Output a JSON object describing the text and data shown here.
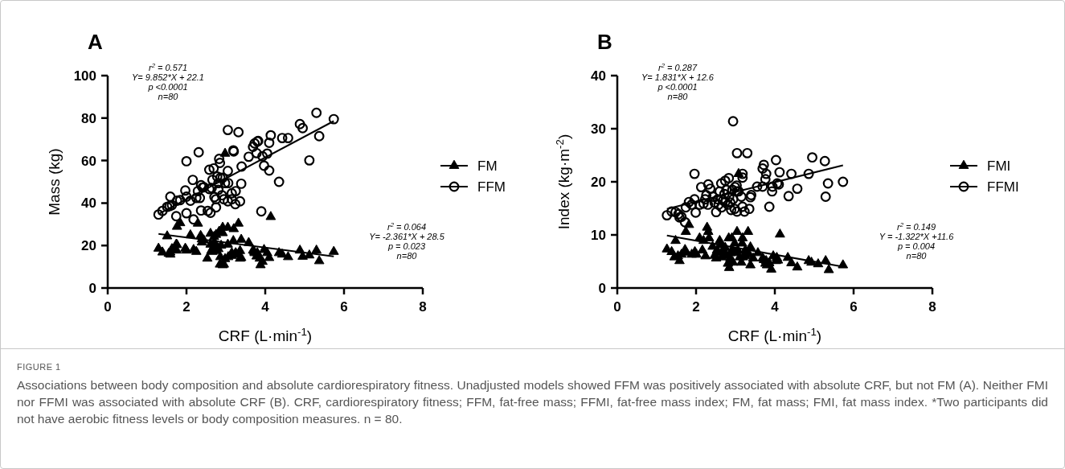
{
  "chart_data": [
    {
      "type": "scatter",
      "title": "A",
      "xlabel": "CRF (L·min$^{-1}$)",
      "ylabel": "Mass (kg)",
      "xlim": [
        0,
        8
      ],
      "xticks": [
        0,
        2,
        4,
        6,
        8
      ],
      "ylim": [
        0,
        100
      ],
      "yticks": [
        0,
        20,
        40,
        60,
        80,
        100
      ],
      "legend": "right",
      "annotations": [
        "r$^{2}$ = 0.571\nY= 9.852*X + 22.1\np <0.0001\nn=80",
        "r$^{2}$ = 0.064\nY= -2.361*X + 28.5\np = 0.023\nn=80"
      ],
      "series": [
        {
          "name": "FM",
          "color": "#000000",
          "marker": "triangle",
          "x": [
            1.29,
            1.39,
            1.51,
            1.55,
            1.59,
            1.63,
            1.74,
            1.75,
            1.76,
            1.84,
            1.97,
            2.0,
            2.1,
            2.18,
            2.25,
            2.29,
            2.36,
            2.39,
            2.44,
            2.53,
            2.61,
            2.63,
            2.66,
            2.68,
            2.7,
            2.71,
            2.75,
            2.81,
            2.83,
            2.85,
            2.86,
            2.88,
            2.92,
            2.92,
            2.95,
            2.98,
            3.05,
            3.05,
            3.06,
            3.15,
            3.19,
            3.2,
            3.22,
            3.25,
            3.32,
            3.36,
            3.39,
            3.39,
            3.58,
            3.69,
            3.73,
            3.78,
            3.8,
            3.88,
            3.93,
            3.97,
            4.05,
            4.1,
            4.14,
            4.35,
            4.43,
            4.58,
            4.88,
            4.95,
            5.12,
            5.3,
            5.37,
            5.74,
            2.98,
            2.75,
            3.72,
            2.75,
            2.61,
            2.39,
            1.76,
            1.59,
            3.36,
            3.86,
            2.92,
            3.15
          ],
          "values": [
            18.6,
            16.8,
            24.4,
            16.2,
            16.8,
            18.4,
            20.5,
            17.7,
            28.9,
            30.6,
            18.6,
            17.7,
            24.9,
            18.0,
            17.1,
            30.4,
            24.6,
            23.0,
            22.5,
            13.9,
            25.6,
            17.5,
            17.1,
            19.0,
            24.1,
            21.5,
            17.5,
            18.4,
            26.6,
            11.1,
            14.6,
            20.0,
            28.5,
            25.9,
            11.1,
            13.7,
            28.5,
            20.5,
            14.6,
            16.5,
            22.2,
            27.8,
            15.7,
            16.5,
            30.4,
            17.5,
            22.8,
            14.2,
            21.3,
            17.7,
            16.5,
            14.9,
            16.5,
            10.8,
            12.4,
            18.0,
            16.5,
            14.2,
            33.5,
            16.5,
            15.8,
            14.6,
            17.7,
            14.8,
            15.4,
            17.7,
            12.7,
            17.1,
            63.3,
            25.1,
            17.1,
            19.6,
            20.5,
            21.5,
            20.3,
            15.8,
            13.9,
            13.9,
            10.8,
            15.2
          ]
        },
        {
          "name": "FFM",
          "color": "#000000",
          "marker": "circle",
          "x": [
            1.29,
            1.39,
            1.51,
            1.57,
            1.63,
            1.74,
            1.59,
            1.76,
            1.84,
            1.97,
            2.0,
            2.0,
            2.1,
            2.16,
            2.18,
            2.25,
            2.29,
            2.31,
            2.34,
            2.37,
            2.37,
            2.44,
            2.54,
            2.58,
            2.64,
            2.66,
            2.69,
            2.71,
            2.75,
            2.75,
            2.81,
            2.81,
            2.83,
            2.85,
            2.86,
            2.9,
            2.92,
            2.95,
            2.98,
            3.05,
            3.05,
            3.06,
            3.05,
            3.15,
            3.15,
            3.19,
            3.2,
            3.24,
            3.32,
            3.36,
            3.39,
            3.4,
            3.58,
            3.69,
            3.73,
            3.78,
            3.8,
            3.82,
            3.93,
            3.97,
            4.05,
            4.1,
            4.1,
            4.14,
            4.35,
            4.43,
            4.58,
            4.88,
            4.95,
            5.12,
            5.3,
            5.37,
            5.74,
            3.9,
            2.41,
            2.58,
            2.78,
            2.0,
            3.25,
            2.61
          ],
          "values": [
            34.6,
            36.3,
            38.2,
            38.6,
            39.0,
            33.8,
            43.0,
            41.1,
            41.4,
            45.9,
            35.2,
            43.0,
            41.1,
            50.9,
            32.3,
            42.4,
            45.6,
            63.9,
            42.4,
            48.4,
            36.5,
            47.5,
            36.3,
            46.6,
            47.1,
            50.9,
            56.3,
            42.8,
            38.0,
            41.8,
            46.2,
            49.4,
            60.8,
            58.9,
            51.9,
            43.7,
            51.9,
            41.8,
            49.4,
            55.1,
            74.4,
            49.4,
            40.8,
            44.6,
            41.8,
            64.8,
            64.3,
            39.5,
            73.4,
            40.8,
            49.1,
            57.2,
            61.8,
            66.5,
            68.1,
            63.5,
            69.0,
            69.2,
            62.0,
            57.6,
            63.3,
            55.3,
            68.4,
            71.9,
            50.0,
            70.6,
            70.6,
            77.2,
            75.3,
            60.1,
            82.5,
            71.5,
            79.5,
            36.1,
            47.3,
            55.7,
            52.5,
            59.7,
            45.6,
            35.4
          ]
        },
        {
          "type": "line",
          "color": "#000000",
          "x": [
            1.29,
            5.74
          ],
          "values": [
            34.8,
            78.6
          ]
        },
        {
          "type": "line",
          "color": "#000000",
          "x": [
            1.29,
            5.74
          ],
          "values": [
            25.5,
            14.9
          ]
        }
      ]
    },
    {
      "type": "scatter",
      "title": "B",
      "xlabel": "CRF (L·min$^{-1}$)",
      "ylabel": "Index (kg·m$^{-2}$)",
      "xlim": [
        0,
        8
      ],
      "xticks": [
        0,
        2,
        4,
        6,
        8
      ],
      "ylim": [
        0,
        40
      ],
      "yticks": [
        0,
        10,
        20,
        30,
        40
      ],
      "legend": "right",
      "annotations": [
        "r$^{2}$ = 0.287\nY= 1.831*X + 12.6\np <0.0001\nn=80",
        "r$^{2}$ = 0.149\nY = -1.322*X +11.6\np = 0.004\nn=80"
      ],
      "series": [
        {
          "name": "FMI",
          "color": "#000000",
          "marker": "triangle",
          "x": [
            1.26,
            1.38,
            1.48,
            1.54,
            1.58,
            1.63,
            1.72,
            1.74,
            1.74,
            1.82,
            1.97,
            2.01,
            2.09,
            2.19,
            2.24,
            2.28,
            2.31,
            2.33,
            2.42,
            2.51,
            2.57,
            2.6,
            2.64,
            2.65,
            2.69,
            2.72,
            2.76,
            2.81,
            2.83,
            2.84,
            2.87,
            2.91,
            2.92,
            2.94,
            2.98,
            3.04,
            3.06,
            3.08,
            3.11,
            3.15,
            3.17,
            3.18,
            3.19,
            3.25,
            3.32,
            3.35,
            3.38,
            3.38,
            3.57,
            3.69,
            3.72,
            3.76,
            3.8,
            3.86,
            3.91,
            3.96,
            4.05,
            4.08,
            4.13,
            4.33,
            4.42,
            4.57,
            4.86,
            4.93,
            5.1,
            5.29,
            5.37,
            5.73,
            1.89,
            2.16,
            2.74,
            2.98,
            3.25,
            2.47,
            2.87,
            3.78,
            4.03,
            1.45,
            2.53,
            3.45
          ],
          "values": [
            7.3,
            6.8,
            8.9,
            6.0,
            5.1,
            6.3,
            7.2,
            6.7,
            10.6,
            11.9,
            6.8,
            6.3,
            9.4,
            8.9,
            6.0,
            11.4,
            10.6,
            9.4,
            7.8,
            5.6,
            6.6,
            8.9,
            8.1,
            5.8,
            7.2,
            6.3,
            6.0,
            4.6,
            9.4,
            3.8,
            5.6,
            9.4,
            7.1,
            4.8,
            8.4,
            10.6,
            7.1,
            21.5,
            5.8,
            4.8,
            8.4,
            9.4,
            5.8,
            6.0,
            10.6,
            6.3,
            4.3,
            7.7,
            6.6,
            5.6,
            5.3,
            4.6,
            4.3,
            4.7,
            3.5,
            6.0,
            5.7,
            5.2,
            10.1,
            5.7,
            4.7,
            3.9,
            5.1,
            4.8,
            4.5,
            5.1,
            3.4,
            4.3,
            6.3,
            7.1,
            7.6,
            6.6,
            7.1,
            6.1,
            6.6,
            5.1,
            5.1,
            5.8,
            7.1,
            5.6
          ]
        },
        {
          "name": "FFMI",
          "color": "#000000",
          "marker": "circle",
          "x": [
            1.26,
            1.38,
            1.48,
            1.55,
            1.58,
            1.63,
            1.72,
            1.74,
            1.82,
            1.96,
            1.99,
            1.96,
            2.09,
            2.13,
            2.19,
            2.26,
            2.31,
            2.3,
            2.36,
            2.47,
            2.51,
            2.55,
            2.57,
            2.6,
            2.64,
            2.65,
            2.69,
            2.72,
            2.74,
            2.77,
            2.81,
            2.83,
            2.84,
            2.87,
            2.89,
            2.92,
            2.94,
            2.98,
            2.99,
            3.03,
            3.04,
            3.04,
            3.08,
            3.15,
            3.18,
            3.18,
            3.18,
            3.23,
            3.3,
            3.35,
            3.38,
            3.4,
            3.55,
            3.69,
            3.69,
            3.72,
            3.76,
            3.78,
            3.86,
            3.93,
            3.94,
            4.03,
            4.06,
            4.1,
            4.12,
            4.35,
            4.42,
            4.57,
            4.86,
            4.95,
            5.27,
            5.35,
            5.29,
            5.73,
            2.74,
            2.43,
            2.23,
            1.89,
            2.94,
            3.04
          ],
          "values": [
            13.7,
            14.4,
            14.3,
            13.9,
            13.3,
            13.4,
            12.4,
            15.2,
            16.2,
            16.7,
            14.2,
            21.5,
            15.7,
            19.0,
            15.9,
            17.5,
            19.5,
            15.7,
            18.7,
            16.1,
            14.3,
            16.7,
            15.7,
            18.2,
            19.7,
            15.2,
            16.5,
            17.7,
            20.2,
            18.5,
            15.7,
            20.7,
            17.2,
            16.1,
            14.7,
            18.5,
            31.4,
            14.9,
            19.0,
            19.3,
            25.4,
            14.4,
            18.2,
            17.2,
            21.5,
            20.8,
            15.3,
            14.4,
            25.4,
            14.9,
            17.1,
            17.5,
            19.1,
            19.1,
            22.5,
            23.2,
            20.5,
            21.5,
            15.3,
            18.2,
            19.1,
            24.1,
            19.7,
            19.5,
            21.8,
            17.3,
            21.5,
            18.7,
            21.5,
            24.6,
            23.9,
            19.7,
            17.2,
            20.0,
            16.2,
            17.2,
            16.7,
            15.7,
            16.7,
            18.2
          ]
        },
        {
          "type": "line",
          "color": "#000000",
          "x": [
            1.26,
            5.73
          ],
          "values": [
            14.9,
            23.1
          ]
        },
        {
          "type": "line",
          "color": "#000000",
          "x": [
            1.26,
            5.73
          ],
          "values": [
            9.9,
            4.0
          ]
        }
      ]
    },
    {
      "type": "other",
      "title": "FIGURE 1",
      "subtitle": "Associations between body composition and absolute cardiorespiratory fitness. Unadjusted models showed FFM was positively associated with absolute CRF, but not FM (A). Neither FMI nor FFMI was associated with absolute CRF (B). CRF, cardiorespiratory fitness; FFM, fat-free mass; FFMI, fat-free mass index; FM, fat mass; FMI, fat mass index. *Two participants did not have aerobic fitness levels or body composition measures. n = 80."
    }
  ]
}
